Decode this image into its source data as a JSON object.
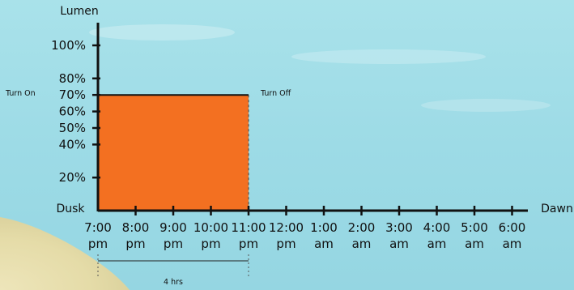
{
  "chart_data": {
    "type": "area",
    "title": "",
    "ylabel": "Lumen",
    "y_ticks": [
      "100%",
      "80%",
      "70%",
      "60%",
      "50%",
      "40%",
      "20%"
    ],
    "y_tick_values": [
      100,
      80,
      70,
      60,
      50,
      40,
      20
    ],
    "ylim": [
      0,
      100
    ],
    "x_start_label": "Dusk",
    "x_end_label": "Dawn",
    "x_ticks": [
      {
        "time": "7:00",
        "period": "pm"
      },
      {
        "time": "8:00",
        "period": "pm"
      },
      {
        "time": "9:00",
        "period": "pm"
      },
      {
        "time": "10:00",
        "period": "pm"
      },
      {
        "time": "11:00",
        "period": "pm"
      },
      {
        "time": "12:00",
        "period": "pm"
      },
      {
        "time": "1:00",
        "period": "am"
      },
      {
        "time": "2:00",
        "period": "am"
      },
      {
        "time": "3:00",
        "period": "am"
      },
      {
        "time": "4:00",
        "period": "am"
      },
      {
        "time": "5:00",
        "period": "am"
      },
      {
        "time": "6:00",
        "period": "am"
      }
    ],
    "series": [
      {
        "start_time": "7:00 pm",
        "end_time": "11:00 pm",
        "value": 70,
        "color": "#f37021"
      }
    ],
    "annotations": {
      "turn_on": "Turn On",
      "turn_off": "Turn Off",
      "duration": "4 hrs"
    }
  }
}
